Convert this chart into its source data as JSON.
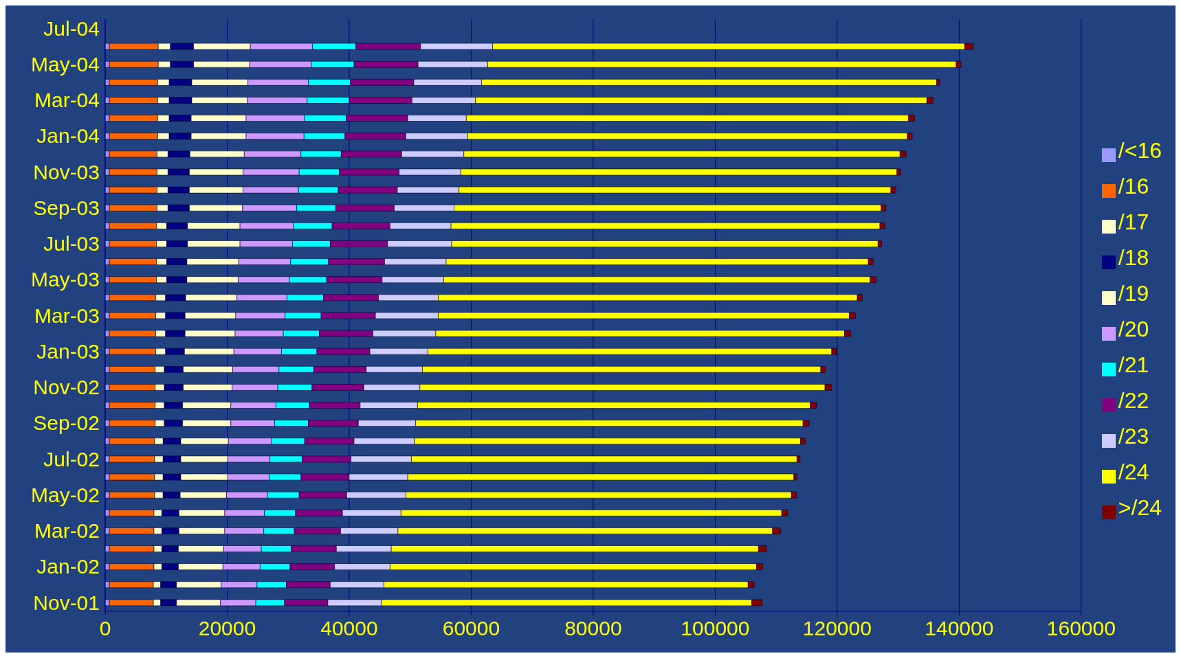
{
  "chart_data": {
    "type": "bar",
    "orientation": "horizontal",
    "stacked": true,
    "grid": "x",
    "legend": "right",
    "categories": [
      "Jul-04",
      null,
      "May-04",
      null,
      "Mar-04",
      null,
      "Jan-04",
      null,
      "Nov-03",
      null,
      "Sep-03",
      null,
      "Jul-03",
      null,
      "May-03",
      null,
      "Mar-03",
      null,
      "Jan-03",
      null,
      "Nov-02",
      null,
      "Sep-02",
      null,
      "Jul-02",
      null,
      "May-02",
      null,
      "Mar-02",
      null,
      "Jan-02",
      null,
      "Nov-01"
    ],
    "xlim": [
      0,
      160000
    ],
    "xticks": [
      0,
      20000,
      40000,
      60000,
      80000,
      100000,
      120000,
      140000,
      160000
    ],
    "series": [
      {
        "name": "/<16",
        "color": "#9999ff",
        "values": [
          null,
          700,
          700,
          700,
          700,
          700,
          700,
          700,
          700,
          700,
          700,
          700,
          700,
          700,
          700,
          700,
          700,
          700,
          700,
          700,
          700,
          700,
          700,
          700,
          700,
          700,
          700,
          700,
          700,
          700,
          700,
          700,
          700
        ]
      },
      {
        "name": "/16",
        "color": "#ff6600",
        "values": [
          null,
          8000,
          8000,
          7900,
          7900,
          7900,
          7900,
          7800,
          7800,
          7800,
          7800,
          7700,
          7700,
          7700,
          7700,
          7600,
          7600,
          7600,
          7600,
          7500,
          7500,
          7500,
          7500,
          7400,
          7400,
          7400,
          7400,
          7300,
          7300,
          7300,
          7300,
          7200,
          7200
        ]
      },
      {
        "name": "/17",
        "color": "#ffffcc",
        "values": [
          null,
          2000,
          2000,
          1900,
          1900,
          1900,
          1900,
          1800,
          1800,
          1800,
          1800,
          1700,
          1700,
          1700,
          1700,
          1600,
          1600,
          1600,
          1600,
          1500,
          1500,
          1500,
          1500,
          1400,
          1400,
          1400,
          1400,
          1300,
          1300,
          1300,
          1300,
          1200,
          1200
        ]
      },
      {
        "name": "/18",
        "color": "#000080",
        "values": [
          null,
          3800,
          3800,
          3700,
          3700,
          3600,
          3600,
          3600,
          3500,
          3500,
          3500,
          3400,
          3400,
          3300,
          3300,
          3300,
          3200,
          3200,
          3100,
          3100,
          3100,
          3000,
          3000,
          2900,
          2900,
          2900,
          2800,
          2800,
          2800,
          2700,
          2700,
          2600,
          2600
        ]
      },
      {
        "name": "/19",
        "color": "#ffffcc",
        "values": [
          null,
          9300,
          9200,
          9200,
          9100,
          9000,
          9000,
          8900,
          8800,
          8800,
          8700,
          8600,
          8600,
          8500,
          8400,
          8400,
          8300,
          8200,
          8100,
          8100,
          8000,
          7900,
          7900,
          7800,
          7700,
          7700,
          7600,
          7500,
          7500,
          7400,
          7300,
          7300,
          7200
        ]
      },
      {
        "name": "/20",
        "color": "#cc99ff",
        "values": [
          null,
          10200,
          10100,
          9900,
          9800,
          9600,
          9500,
          9300,
          9200,
          9100,
          8900,
          8800,
          8600,
          8500,
          8400,
          8200,
          8100,
          7900,
          7800,
          7600,
          7500,
          7400,
          7200,
          7100,
          6900,
          6800,
          6700,
          6500,
          6400,
          6200,
          6100,
          5900,
          5800
        ]
      },
      {
        "name": "/21",
        "color": "#00ffff",
        "values": [
          null,
          7100,
          7000,
          6900,
          6900,
          6800,
          6700,
          6600,
          6600,
          6500,
          6400,
          6300,
          6200,
          6200,
          6100,
          6000,
          5900,
          5900,
          5800,
          5700,
          5600,
          5500,
          5500,
          5400,
          5300,
          5200,
          5200,
          5100,
          5000,
          4900,
          4900,
          4800,
          4700
        ]
      },
      {
        "name": "/22",
        "color": "#800080",
        "values": [
          null,
          10600,
          10500,
          10400,
          10300,
          10100,
          10000,
          9900,
          9800,
          9700,
          9600,
          9500,
          9400,
          9200,
          9100,
          9000,
          8900,
          8800,
          8700,
          8600,
          8500,
          8300,
          8200,
          8100,
          8000,
          7900,
          7800,
          7700,
          7600,
          7400,
          7300,
          7200,
          7100
        ]
      },
      {
        "name": "/23",
        "color": "#ccccff",
        "values": [
          null,
          11800,
          11400,
          11100,
          10400,
          9600,
          10100,
          10200,
          10100,
          10100,
          9800,
          10000,
          10500,
          10100,
          10100,
          9800,
          10300,
          10300,
          9500,
          9200,
          9200,
          9400,
          9400,
          9900,
          9900,
          9600,
          9700,
          9600,
          9400,
          9000,
          9100,
          8800,
          8800
        ]
      },
      {
        "name": "/24",
        "color": "#ffff00",
        "values": [
          null,
          77400,
          76800,
          74600,
          74000,
          72500,
          72100,
          71500,
          71500,
          70800,
          70000,
          70300,
          69900,
          69200,
          69900,
          68700,
          67400,
          67000,
          66200,
          65300,
          66400,
          64400,
          63500,
          63300,
          63200,
          63300,
          63200,
          62400,
          61400,
          60200,
          60100,
          59700,
          60700
        ]
      },
      {
        "name": ">/24",
        "color": "#800000",
        "values": [
          null,
          1400,
          800,
          500,
          1000,
          1000,
          800,
          1000,
          600,
          800,
          800,
          800,
          600,
          800,
          1000,
          800,
          1000,
          1000,
          800,
          800,
          1100,
          1000,
          1000,
          800,
          500,
          500,
          800,
          1000,
          1300,
          1300,
          1000,
          1000,
          1700
        ]
      }
    ]
  }
}
